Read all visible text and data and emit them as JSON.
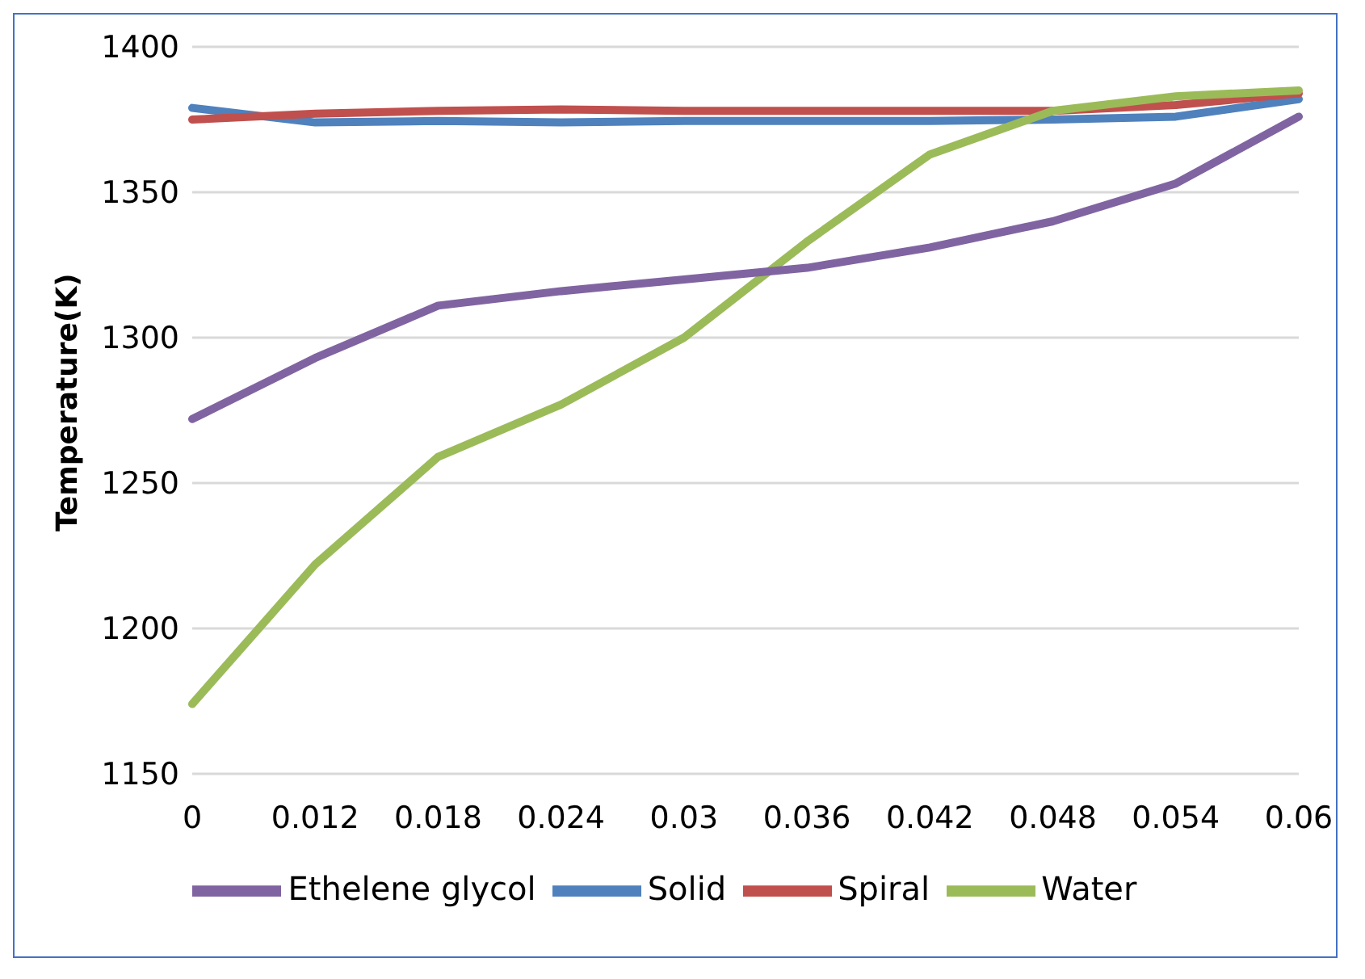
{
  "chart_data": {
    "type": "line",
    "ylabel": "Temperature(K)",
    "categories": [
      "0",
      "0.012",
      "0.018",
      "0.024",
      "0.03",
      "0.036",
      "0.042",
      "0.048",
      "0.054",
      "0.06"
    ],
    "series": [
      {
        "name": "Solid",
        "color": "#4f81bd",
        "values": [
          1379,
          1374,
          1374.5,
          1374,
          1374.5,
          1374.5,
          1374.5,
          1375,
          1376,
          1382
        ]
      },
      {
        "name": "Spiral",
        "color": "#c0504d",
        "values": [
          1375,
          1377,
          1378,
          1378.5,
          1378,
          1378,
          1378,
          1378,
          1380,
          1384
        ]
      },
      {
        "name": "Water",
        "color": "#9bbb59",
        "values": [
          1174,
          1222,
          1259,
          1277,
          1300,
          1333,
          1363,
          1378,
          1383,
          1385
        ]
      },
      {
        "name": "Ethelene glycol",
        "color": "#8064a2",
        "values": [
          1272,
          1293,
          1311,
          1316,
          1320,
          1324,
          1331,
          1340,
          1353,
          1376
        ]
      }
    ],
    "ylim": [
      1150,
      1400
    ],
    "yticks": [
      1150,
      1200,
      1250,
      1300,
      1350,
      1400
    ],
    "grid": "y",
    "legend": "bottom",
    "marker": "none",
    "line_style": "solid"
  }
}
